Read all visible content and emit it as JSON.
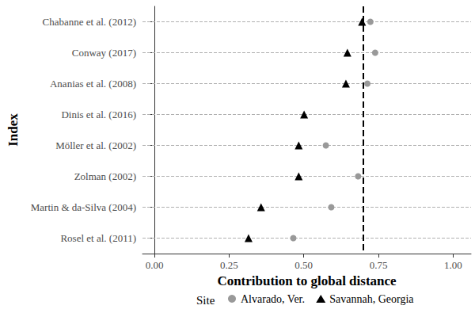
{
  "chart_data": {
    "type": "scatter",
    "orientation": "horizontal",
    "x_label": "Contribution to global distance",
    "y_label": "Index",
    "categories": [
      "Chabanne et al. (2012)",
      "Conway (2017)",
      "Ananias et al. (2008)",
      "Dinis et al. (2016)",
      "Möller et al. (2002)",
      "Zolman (2002)",
      "Martin & da-Silva (2004)",
      "Rosel et al. (2011)"
    ],
    "series": [
      {
        "name": "Alvarado, Ver.",
        "color": "#999999",
        "marker": "circle",
        "values": [
          0.723,
          0.739,
          0.713,
          null,
          0.574,
          0.682,
          0.592,
          0.465
        ]
      },
      {
        "name": "Savannah, Georgia",
        "color": "#000000",
        "marker": "triangle",
        "values": [
          0.695,
          0.646,
          0.641,
          0.501,
          0.483,
          0.483,
          0.357,
          0.315
        ]
      }
    ],
    "xlim": [
      -0.04,
      1.06
    ],
    "xticks": [
      {
        "value": 0,
        "label": "0.00"
      },
      {
        "value": 0.25,
        "label": "0.25"
      },
      {
        "value": 0.5,
        "label": "0.50"
      },
      {
        "value": 0.75,
        "label": "0.75"
      },
      {
        "value": 1,
        "label": "1.00"
      }
    ],
    "reference_line": {
      "x": 0.7,
      "line_style": "dashed",
      "color": "#000000"
    },
    "grid": true,
    "legend": "bottom",
    "legend_title": "Site"
  }
}
